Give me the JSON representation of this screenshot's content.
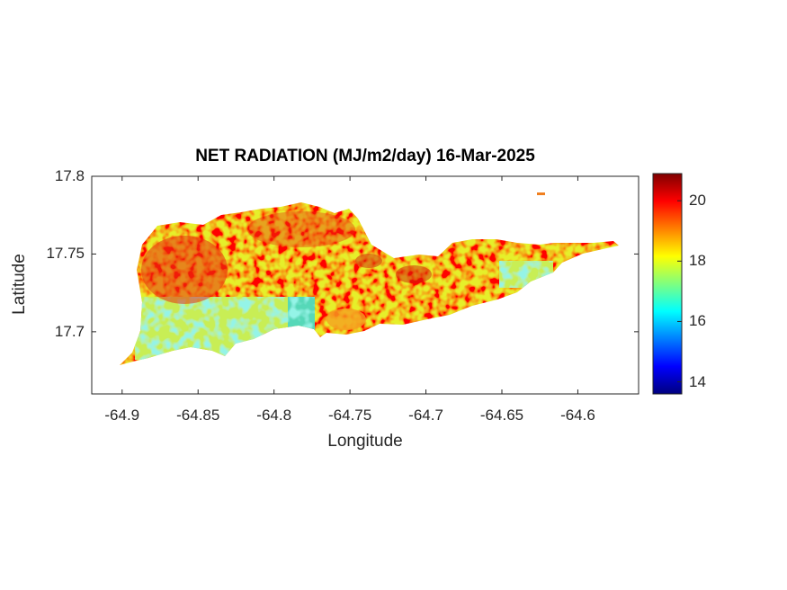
{
  "title": "NET RADIATION (MJ/m2/day) 16-Mar-2025",
  "xlabel": "Longitude",
  "ylabel": "Latitude",
  "map": {
    "x_ticks": [
      "-64.9",
      "-64.85",
      "-64.8",
      "-64.75",
      "-64.7",
      "-64.65",
      "-64.6"
    ],
    "y_ticks": [
      "17.8",
      "17.75",
      "17.7"
    ],
    "xlim": [
      -64.92,
      -64.56
    ],
    "ylim": [
      17.66,
      17.8
    ],
    "grid": false,
    "field": "net radiation",
    "colormap": "jet"
  },
  "colorbar": {
    "ticks": [
      "20",
      "18",
      "16",
      "14"
    ],
    "range": [
      13.6,
      20.9
    ],
    "colors": [
      "#00007f",
      "#0000ff",
      "#007fff",
      "#00ffff",
      "#7fff7f",
      "#ffff00",
      "#ff7f00",
      "#ff0000",
      "#7f0000"
    ]
  }
}
